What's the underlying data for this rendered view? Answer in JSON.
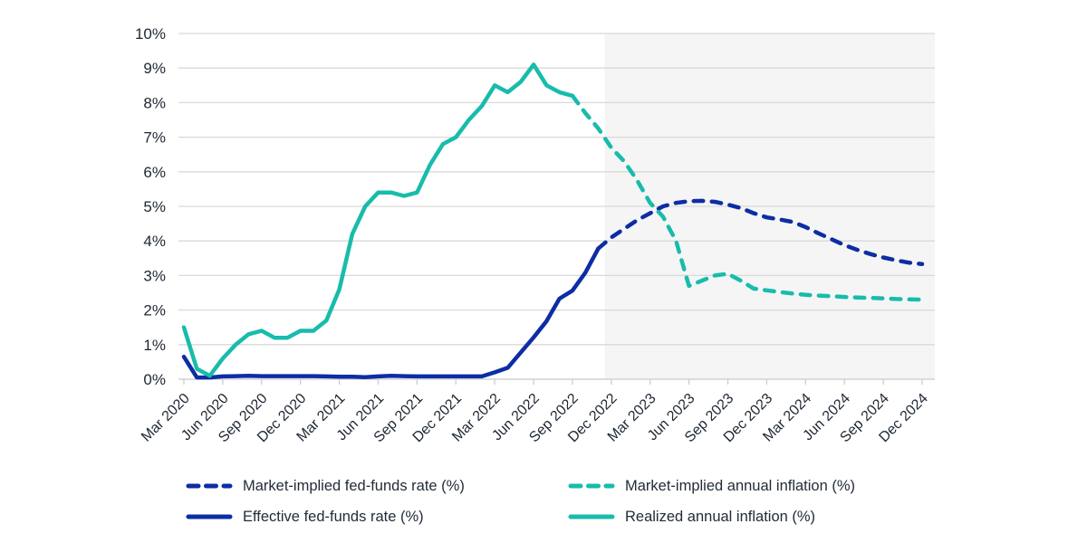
{
  "chart_data": {
    "type": "line",
    "title": "",
    "x_axis": {
      "start": "Mar 2020",
      "end": "Dec 2024",
      "step_months": 1,
      "tick_labels": [
        "Mar 2020",
        "Jun 2020",
        "Sep 2020",
        "Dec 2020",
        "Mar 2021",
        "Jun 2021",
        "Sep 2021",
        "Dec 2021",
        "Mar 2022",
        "Jun 2022",
        "Sep 2022",
        "Dec 2022",
        "Mar 2023",
        "Jun 2023",
        "Sep 2023",
        "Dec 2023",
        "Mar 2024",
        "Jun 2024",
        "Sep 2024",
        "Dec 2024"
      ],
      "tick_month_indices": [
        0,
        3,
        6,
        9,
        12,
        15,
        18,
        21,
        24,
        27,
        30,
        33,
        36,
        39,
        42,
        45,
        48,
        51,
        54,
        57
      ]
    },
    "y_axis": {
      "min": 0,
      "max": 10,
      "tick_step": 1,
      "tick_labels": [
        "0%",
        "1%",
        "2%",
        "3%",
        "4%",
        "5%",
        "6%",
        "7%",
        "8%",
        "9%",
        "10%"
      ]
    },
    "grid": "horizontal",
    "legend_position": "bottom",
    "forecast_shading": {
      "start_month_index": 32.5,
      "end_month_index": 58,
      "color": "#f5f5f6"
    },
    "series": [
      {
        "name": "Market-implied fed-funds rate (%)",
        "color": "#0d2da4",
        "style": "dashed",
        "start_month_index": 32,
        "values": [
          3.78,
          4.1,
          4.35,
          4.6,
          4.8,
          5.0,
          5.1,
          5.15,
          5.16,
          5.13,
          5.05,
          4.95,
          4.8,
          4.68,
          4.62,
          4.55,
          4.4,
          4.22,
          4.05,
          3.88,
          3.74,
          3.62,
          3.52,
          3.44,
          3.37,
          3.33
        ]
      },
      {
        "name": "Market-implied annual inflation (%)",
        "color": "#18bcab",
        "style": "dashed",
        "start_month_index": 30,
        "values": [
          8.2,
          7.7,
          7.25,
          6.7,
          6.3,
          5.75,
          5.1,
          4.7,
          4.0,
          2.7,
          2.85,
          3.0,
          3.05,
          2.85,
          2.62,
          2.57,
          2.52,
          2.48,
          2.44,
          2.42,
          2.4,
          2.38,
          2.36,
          2.35,
          2.34,
          2.32,
          2.31,
          2.3
        ]
      },
      {
        "name": "Effective fed-funds rate (%)",
        "color": "#0d2da4",
        "style": "solid",
        "start_month_index": 0,
        "values": [
          0.65,
          0.05,
          0.05,
          0.08,
          0.09,
          0.1,
          0.09,
          0.09,
          0.09,
          0.09,
          0.09,
          0.08,
          0.07,
          0.07,
          0.06,
          0.08,
          0.1,
          0.09,
          0.08,
          0.08,
          0.08,
          0.08,
          0.08,
          0.08,
          0.2,
          0.33,
          0.77,
          1.21,
          1.68,
          2.33,
          2.56,
          3.08,
          3.78
        ]
      },
      {
        "name": "Realized annual inflation (%)",
        "color": "#18bcab",
        "style": "solid",
        "start_month_index": 0,
        "values": [
          1.5,
          0.3,
          0.1,
          0.6,
          1.0,
          1.3,
          1.4,
          1.2,
          1.2,
          1.4,
          1.4,
          1.7,
          2.6,
          4.2,
          5.0,
          5.4,
          5.4,
          5.3,
          5.4,
          6.2,
          6.8,
          7.0,
          7.5,
          7.9,
          8.5,
          8.3,
          8.6,
          9.1,
          8.5,
          8.3,
          8.2
        ]
      }
    ]
  },
  "legend": {
    "items": [
      {
        "label": "Market-implied fed-funds rate (%)",
        "series_index": 0
      },
      {
        "label": "Market-implied annual inflation (%)",
        "series_index": 1
      },
      {
        "label": "Effective fed-funds rate (%)",
        "series_index": 2
      },
      {
        "label": "Realized annual inflation (%)",
        "series_index": 3
      }
    ]
  },
  "colors": {
    "navy": "#0d2da4",
    "teal": "#18bcab",
    "gridline": "#d9d9d9",
    "axis_tick": "#c9ced4",
    "forecast_shade": "#f5f5f6",
    "text": "#1d2733",
    "background": "#ffffff"
  }
}
